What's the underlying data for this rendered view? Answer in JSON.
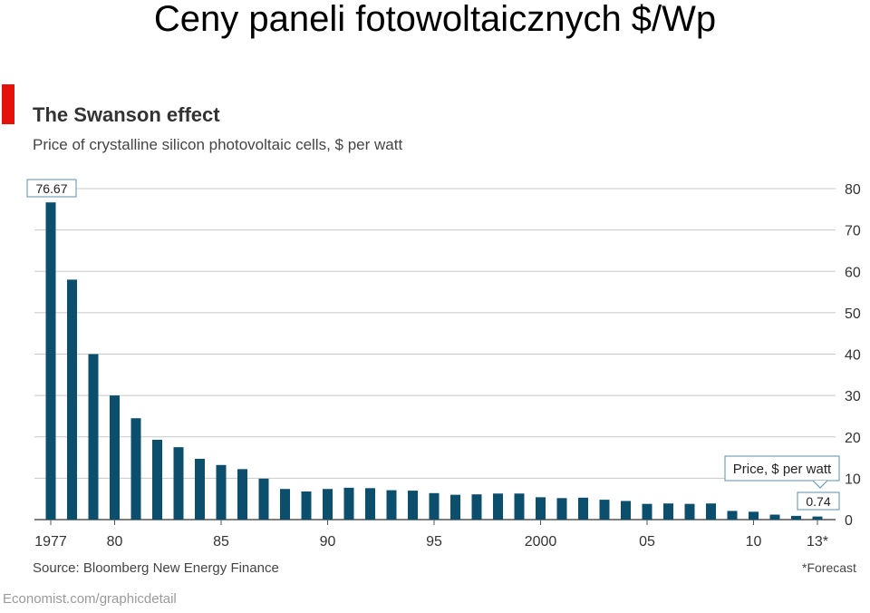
{
  "slide": {
    "title": "Ceny paneli fotowoltaicznych $/Wp"
  },
  "chart_data": {
    "type": "bar",
    "title": "The Swanson effect",
    "subtitle": "Price of crystalline silicon photovoltaic cells, $ per watt",
    "categories": [
      "1977",
      "1978",
      "1979",
      "1980",
      "1981",
      "1982",
      "1983",
      "1984",
      "1985",
      "1986",
      "1987",
      "1988",
      "1989",
      "1990",
      "1991",
      "1992",
      "1993",
      "1994",
      "1995",
      "1996",
      "1997",
      "1998",
      "1999",
      "2000",
      "2001",
      "2002",
      "2003",
      "2004",
      "2005",
      "2006",
      "2007",
      "2008",
      "2009",
      "2010",
      "2011",
      "2012",
      "2013"
    ],
    "values": [
      76.67,
      58,
      40,
      30,
      24.5,
      19.3,
      17.5,
      14.7,
      13.2,
      12.2,
      9.9,
      7.4,
      6.8,
      7.4,
      7.7,
      7.6,
      7.1,
      7.0,
      6.4,
      6.0,
      6.1,
      6.3,
      6.3,
      5.4,
      5.2,
      5.3,
      4.8,
      4.5,
      3.8,
      3.9,
      3.8,
      3.9,
      2.1,
      1.9,
      1.2,
      0.9,
      0.74
    ],
    "x_tick_labels": [
      {
        "index": 0,
        "label": "1977"
      },
      {
        "index": 3,
        "label": "80"
      },
      {
        "index": 8,
        "label": "85"
      },
      {
        "index": 13,
        "label": "90"
      },
      {
        "index": 18,
        "label": "95"
      },
      {
        "index": 23,
        "label": "2000"
      },
      {
        "index": 28,
        "label": "05"
      },
      {
        "index": 33,
        "label": "10"
      },
      {
        "index": 36,
        "label": "13*"
      }
    ],
    "y_ticks": [
      0,
      10,
      20,
      30,
      40,
      50,
      60,
      70,
      80
    ],
    "ylim": [
      0,
      80
    ],
    "y_axis_side": "right",
    "grid": true,
    "bar_color": "#0b4f6c",
    "annotations": {
      "first_value_label": "76.67",
      "last_value_label": "0.74",
      "callout_title": "Price, $ per watt"
    },
    "source": "Source: Bloomberg New Energy Finance",
    "footnote": "*Forecast",
    "credit": "Economist.com/graphicdetail"
  }
}
